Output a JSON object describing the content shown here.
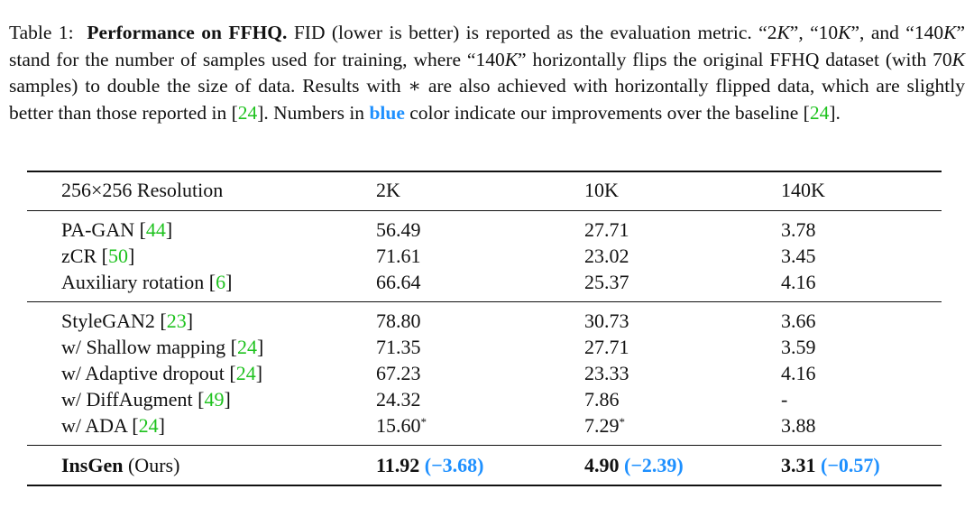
{
  "caption": {
    "parts": [
      "Table 1:",
      "Performance on FFHQ.",
      "FID (lower is better) is reported as the evaluation metric. “2",
      "K",
      "”, “10",
      "K",
      "”, and “140",
      "K",
      "” stand for the number of samples used for training, where “140",
      "K",
      "” horizontally flips the original FFHQ dataset (with 70",
      "K",
      "samples) to double the size of data. Results with ∗ are also achieved with horizontally flipped data, which are slightly better than those reported in [",
      "24",
      "]. Numbers in",
      "blue",
      "color indicate our improvements over the baseline [",
      "24",
      "]."
    ]
  },
  "table": {
    "header": [
      "256×256 Resolution",
      "2K",
      "10K",
      "140K"
    ],
    "groups": [
      [
        {
          "cite": [
            "PA-GAN [",
            "44",
            "]"
          ],
          "values": [
            {
              "value": "56.49"
            },
            {
              "value": "27.71"
            },
            {
              "value": "3.78"
            }
          ]
        },
        {
          "cite": [
            "zCR [",
            "50",
            "]"
          ],
          "values": [
            {
              "value": "71.61"
            },
            {
              "value": "23.02"
            },
            {
              "value": "3.45"
            }
          ]
        },
        {
          "cite": [
            "Auxiliary rotation [",
            "6",
            "]"
          ],
          "values": [
            {
              "value": "66.64"
            },
            {
              "value": "25.37"
            },
            {
              "value": "4.16"
            }
          ]
        }
      ],
      [
        {
          "cite": [
            "StyleGAN2 [",
            "23",
            "]"
          ],
          "values": [
            {
              "value": "78.80"
            },
            {
              "value": "30.73"
            },
            {
              "value": "3.66"
            }
          ]
        },
        {
          "cite": [
            "w/ Shallow mapping [",
            "24",
            "]"
          ],
          "values": [
            {
              "value": "71.35"
            },
            {
              "value": "27.71"
            },
            {
              "value": "3.59"
            }
          ]
        },
        {
          "cite": [
            "w/ Adaptive dropout [",
            "24",
            "]"
          ],
          "values": [
            {
              "value": "67.23"
            },
            {
              "value": "23.33"
            },
            {
              "value": "4.16"
            }
          ]
        },
        {
          "cite": [
            "w/ DiffAugment [",
            "49",
            "]"
          ],
          "values": [
            {
              "value": "24.32"
            },
            {
              "value": "7.86"
            },
            {
              "value": "-"
            }
          ]
        },
        {
          "cite": [
            "w/ ADA [",
            "24",
            "]"
          ],
          "values": [
            {
              "value": "15.60",
              "mark": "*"
            },
            {
              "value": "7.29",
              "mark": "*"
            },
            {
              "value": "3.88"
            }
          ]
        }
      ]
    ],
    "ours": {
      "method": "InsGen",
      "note": "(Ours)",
      "values": [
        {
          "value": "11.92",
          "delta": "(−3.68)"
        },
        {
          "value": "4.90",
          "delta": "(−2.39)"
        },
        {
          "value": "3.31",
          "delta": "(−0.57)"
        }
      ]
    }
  }
}
